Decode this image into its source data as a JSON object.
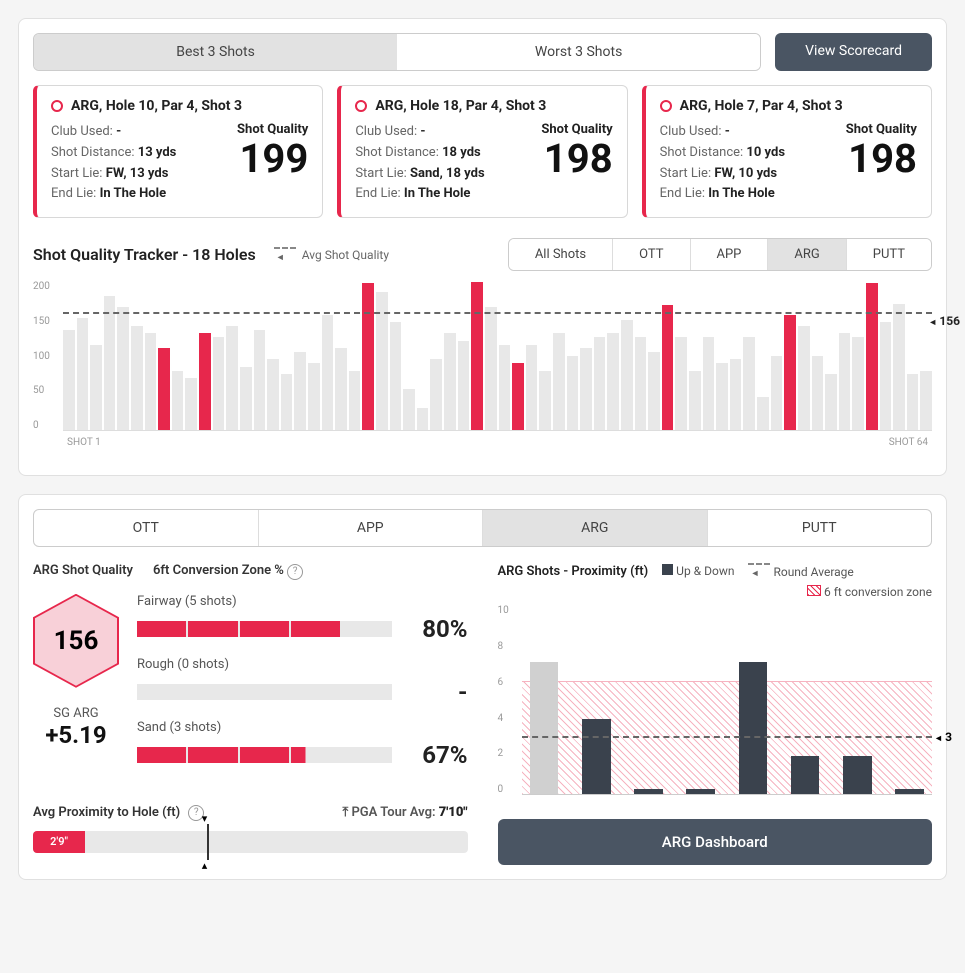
{
  "colors": {
    "accent": "#e7274c",
    "dark": "#4a5563",
    "grey_bar": "#e8e8e8",
    "dark_bar": "#3a424d"
  },
  "top": {
    "seg": [
      "Best 3 Shots",
      "Worst 3 Shots"
    ],
    "seg_active": 0,
    "view_btn": "View Scorecard"
  },
  "cards": [
    {
      "title": "ARG, Hole 10, Par 4, Shot 3",
      "club": "-",
      "dist": "13 yds",
      "start": "FW, 13 yds",
      "end": "In The Hole",
      "sq": "199"
    },
    {
      "title": "ARG, Hole 18, Par 4, Shot 3",
      "club": "-",
      "dist": "18 yds",
      "start": "Sand, 18 yds",
      "end": "In The Hole",
      "sq": "198"
    },
    {
      "title": "ARG, Hole 7, Par 4, Shot 3",
      "club": "-",
      "dist": "10 yds",
      "start": "FW, 10 yds",
      "end": "In The Hole",
      "sq": "198"
    }
  ],
  "labels": {
    "club": "Club Used: ",
    "dist": "Shot Distance: ",
    "start": "Start Lie: ",
    "end": "End Lie: ",
    "sq": "Shot Quality"
  },
  "tracker": {
    "title": "Shot Quality Tracker - 18 Holes",
    "legend": "Avg Shot Quality",
    "tabs": [
      "All Shots",
      "OTT",
      "APP",
      "ARG",
      "PUTT"
    ],
    "active": 3,
    "avg": 156,
    "ymax": 200,
    "yticks": [
      200,
      150,
      100,
      50,
      0
    ],
    "x_first": "SHOT 1",
    "x_last": "SHOT 64",
    "bars": [
      {
        "v": 135
      },
      {
        "v": 150
      },
      {
        "v": 115
      },
      {
        "v": 180
      },
      {
        "v": 165
      },
      {
        "v": 140
      },
      {
        "v": 130
      },
      {
        "v": 110,
        "hl": true
      },
      {
        "v": 80
      },
      {
        "v": 70
      },
      {
        "v": 130,
        "hl": true
      },
      {
        "v": 125
      },
      {
        "v": 140
      },
      {
        "v": 85
      },
      {
        "v": 135
      },
      {
        "v": 95
      },
      {
        "v": 75
      },
      {
        "v": 105
      },
      {
        "v": 90
      },
      {
        "v": 155
      },
      {
        "v": 110
      },
      {
        "v": 80
      },
      {
        "v": 198,
        "hl": true
      },
      {
        "v": 185
      },
      {
        "v": 145
      },
      {
        "v": 55
      },
      {
        "v": 30
      },
      {
        "v": 95
      },
      {
        "v": 130
      },
      {
        "v": 120
      },
      {
        "v": 199,
        "hl": true
      },
      {
        "v": 165
      },
      {
        "v": 115
      },
      {
        "v": 90,
        "hl": true
      },
      {
        "v": 115
      },
      {
        "v": 80
      },
      {
        "v": 130
      },
      {
        "v": 100
      },
      {
        "v": 110
      },
      {
        "v": 125
      },
      {
        "v": 130
      },
      {
        "v": 148
      },
      {
        "v": 125
      },
      {
        "v": 105
      },
      {
        "v": 168,
        "hl": true
      },
      {
        "v": 125
      },
      {
        "v": 80
      },
      {
        "v": 125
      },
      {
        "v": 90
      },
      {
        "v": 95
      },
      {
        "v": 125
      },
      {
        "v": 45
      },
      {
        "v": 100
      },
      {
        "v": 155,
        "hl": true
      },
      {
        "v": 140
      },
      {
        "v": 100
      },
      {
        "v": 75
      },
      {
        "v": 130
      },
      {
        "v": 125
      },
      {
        "v": 198,
        "hl": true
      },
      {
        "v": 145
      },
      {
        "v": 170
      },
      {
        "v": 75
      },
      {
        "v": 80
      }
    ]
  },
  "lower": {
    "tabs": [
      "OTT",
      "APP",
      "ARG",
      "PUTT"
    ],
    "active": 2,
    "left_title": "ARG Shot Quality",
    "conv_title": "6ft Conversion Zone %",
    "hex": "156",
    "sg_label": "SG ARG",
    "sg_val": "+5.19",
    "conv": [
      {
        "label": "Fairway (5 shots)",
        "segs": 5,
        "fill": 4,
        "pct": "80%"
      },
      {
        "label": "Rough (0 shots)",
        "segs": 5,
        "fill": 0,
        "pct": "-"
      },
      {
        "label": "Sand (3 shots)",
        "segs": 5,
        "fill": 3.3,
        "pct": "67%"
      }
    ],
    "prox_label": "Avg Proximity to Hole (ft)",
    "pga_label": "PGA Tour Avg: ",
    "pga_val": "7'10\"",
    "prox_fill_pct": 12,
    "prox_val": "2'9\"",
    "prox_marker_pct": 40,
    "right_title": "ARG Shots - Proximity (ft)",
    "legend_updown": "Up & Down",
    "legend_round": "Round Average",
    "legend_zone": "6 ft conversion zone",
    "y_max": 10,
    "y_ticks": [
      10,
      8,
      6,
      4,
      2,
      0
    ],
    "zone_top": 6,
    "avg": 3,
    "pbars": [
      {
        "v": 7,
        "grey": true
      },
      {
        "v": 4
      },
      {
        "v": 0.3
      },
      {
        "v": 0.3
      },
      {
        "v": 7
      },
      {
        "v": 2
      },
      {
        "v": 2
      },
      {
        "v": 0.3
      }
    ],
    "dash_btn": "ARG Dashboard"
  }
}
